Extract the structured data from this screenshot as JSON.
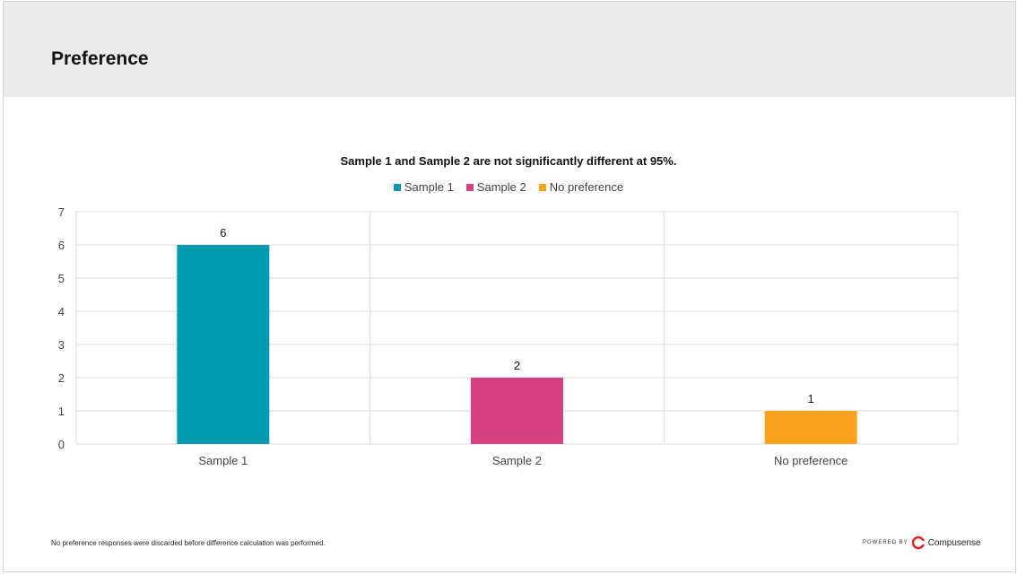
{
  "header": {
    "title": "Preference"
  },
  "chart_data": {
    "type": "bar",
    "title": "Sample 1 and Sample 2 are not significantly different at 95%.",
    "categories": [
      "Sample 1",
      "Sample 2",
      "No preference"
    ],
    "values": [
      6,
      2,
      1
    ],
    "data_labels": [
      "6",
      "2",
      "1"
    ],
    "colors": [
      "#0099b0",
      "#d6427f",
      "#f7a11d"
    ],
    "legend": [
      "Sample 1",
      "Sample 2",
      "No preference"
    ],
    "legend_position": "top-center",
    "ylim": [
      0,
      7
    ],
    "yticks": [
      "0",
      "1",
      "2",
      "3",
      "4",
      "5",
      "6",
      "7"
    ],
    "grid": true,
    "xlabel": "",
    "ylabel": ""
  },
  "footer": {
    "note": "No preference responses were discarded before difference calculation was performed.",
    "powered_by": "POWERED BY",
    "brand": "Compusense"
  }
}
